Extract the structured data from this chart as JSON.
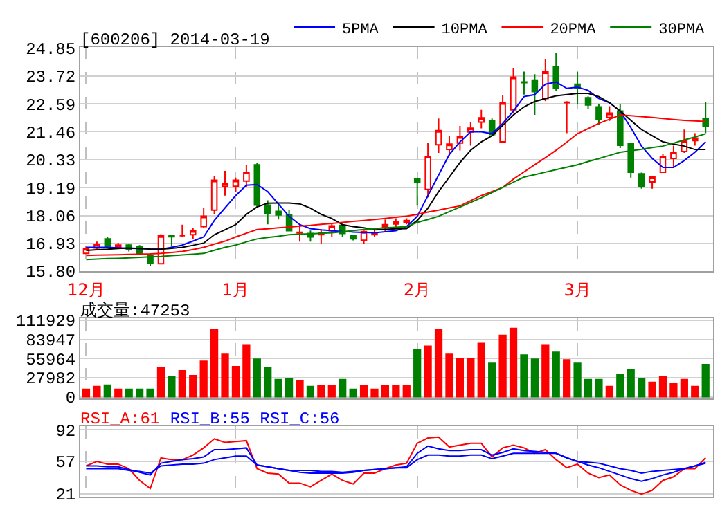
{
  "chart_data": [
    {
      "type": "candlestick",
      "title": "[600206] 2014-03-19",
      "legend": "top right",
      "grid": true,
      "marker": "none",
      "line_style": "solid",
      "categories": [
        "12月",
        null,
        null,
        null,
        null,
        null,
        null,
        null,
        null,
        null,
        null,
        null,
        null,
        null,
        "1月",
        null,
        null,
        null,
        null,
        null,
        null,
        null,
        null,
        null,
        null,
        null,
        null,
        null,
        null,
        null,
        null,
        "2月",
        null,
        null,
        null,
        null,
        null,
        null,
        null,
        null,
        null,
        null,
        null,
        null,
        null,
        null,
        "3月",
        null,
        null,
        null,
        null,
        null,
        null,
        null,
        null,
        null,
        null,
        null,
        null
      ],
      "ylim": [
        15.8,
        24.9
      ],
      "yticks": [
        {
          "value": 15.8,
          "label": "15.80"
        },
        16.93,
        18.06,
        19.19,
        20.33,
        21.46,
        22.59,
        23.72,
        24.85
      ],
      "ohlc": [
        [
          16.52,
          16.8,
          16.5,
          16.72
        ],
        [
          16.74,
          17.0,
          16.7,
          16.89
        ],
        [
          17.11,
          17.2,
          16.78,
          16.81
        ],
        [
          16.78,
          16.95,
          16.7,
          16.86
        ],
        [
          16.86,
          16.92,
          16.6,
          16.69
        ],
        [
          16.78,
          16.86,
          16.5,
          16.52
        ],
        [
          16.44,
          16.5,
          16.0,
          16.14
        ],
        [
          16.1,
          17.3,
          16.08,
          17.24
        ],
        [
          17.23,
          17.28,
          16.8,
          17.2
        ],
        [
          17.24,
          17.69,
          17.2,
          17.24
        ],
        [
          17.28,
          17.55,
          17.1,
          17.44
        ],
        [
          17.61,
          18.37,
          17.55,
          18.03
        ],
        [
          18.28,
          19.65,
          18.1,
          19.49
        ],
        [
          19.25,
          19.87,
          18.87,
          19.37
        ],
        [
          19.25,
          19.6,
          19.0,
          19.49
        ],
        [
          19.46,
          20.1,
          19.2,
          19.82
        ],
        [
          20.12,
          20.2,
          18.4,
          18.48
        ],
        [
          18.48,
          18.68,
          17.7,
          18.15
        ],
        [
          18.23,
          18.5,
          17.9,
          18.08
        ],
        [
          18.08,
          18.3,
          17.44,
          17.44
        ],
        [
          17.35,
          17.7,
          17.0,
          17.38
        ],
        [
          17.33,
          17.45,
          17.0,
          17.19
        ],
        [
          17.28,
          17.5,
          16.9,
          17.36
        ],
        [
          17.44,
          17.75,
          17.2,
          17.64
        ],
        [
          17.66,
          17.72,
          17.2,
          17.33
        ],
        [
          17.24,
          17.28,
          17.05,
          17.11
        ],
        [
          17.06,
          17.45,
          16.9,
          17.41
        ],
        [
          17.28,
          17.5,
          17.2,
          17.36
        ],
        [
          17.58,
          17.9,
          17.4,
          17.69
        ],
        [
          17.72,
          17.95,
          17.6,
          17.82
        ],
        [
          17.78,
          17.95,
          17.7,
          17.86
        ],
        [
          19.54,
          19.55,
          18.46,
          19.4
        ],
        [
          19.12,
          21.0,
          18.8,
          20.46
        ],
        [
          20.93,
          22.0,
          20.6,
          21.51
        ],
        [
          20.74,
          21.3,
          20.5,
          20.96
        ],
        [
          21.0,
          21.7,
          20.7,
          21.26
        ],
        [
          21.45,
          21.85,
          20.9,
          21.61
        ],
        [
          21.85,
          22.35,
          21.6,
          22.03
        ],
        [
          21.92,
          22.0,
          21.35,
          21.35
        ],
        [
          21.05,
          22.95,
          21.05,
          22.64
        ],
        [
          22.35,
          24.03,
          22.2,
          23.68
        ],
        [
          23.48,
          23.9,
          22.97,
          23.45
        ],
        [
          23.56,
          23.8,
          22.15,
          23.09
        ],
        [
          22.81,
          24.4,
          22.7,
          23.89
        ],
        [
          24.1,
          24.66,
          23.1,
          23.22
        ],
        [
          22.64,
          22.7,
          21.4,
          22.66
        ],
        [
          23.39,
          23.9,
          22.6,
          23.22
        ],
        [
          22.84,
          22.9,
          22.4,
          22.55
        ],
        [
          22.47,
          22.6,
          21.75,
          21.95
        ],
        [
          22.04,
          22.5,
          21.9,
          22.22
        ],
        [
          22.3,
          22.6,
          20.8,
          20.91
        ],
        [
          20.99,
          21.0,
          19.6,
          19.82
        ],
        [
          19.75,
          19.8,
          19.15,
          19.24
        ],
        [
          19.42,
          19.65,
          19.15,
          19.62
        ],
        [
          19.82,
          20.55,
          19.8,
          20.46
        ],
        [
          20.38,
          20.9,
          20.0,
          20.63
        ],
        [
          20.66,
          21.55,
          20.6,
          21.08
        ],
        [
          21.1,
          21.4,
          20.9,
          21.21
        ],
        [
          22.0,
          22.65,
          21.4,
          21.7
        ]
      ],
      "series": [
        {
          "name": "5PMA",
          "type": "line",
          "color": "#0000ff",
          "values": [
            16.77,
            16.77,
            16.77,
            16.75,
            16.73,
            16.72,
            16.7,
            16.69,
            16.77,
            16.86,
            17.02,
            17.19,
            17.86,
            18.37,
            18.87,
            19.29,
            19.32,
            19.03,
            18.53,
            18.03,
            17.69,
            17.53,
            17.48,
            17.44,
            17.41,
            17.39,
            17.37,
            17.36,
            17.4,
            17.44,
            17.61,
            18.03,
            18.87,
            19.7,
            20.54,
            21.05,
            21.46,
            21.46,
            21.38,
            21.8,
            22.3,
            22.89,
            22.97,
            23.39,
            23.48,
            23.22,
            23.27,
            23.14,
            22.81,
            22.64,
            22.3,
            21.63,
            20.88,
            20.38,
            20.01,
            20.01,
            20.29,
            20.63,
            21.05
          ]
        },
        {
          "name": "10PMA",
          "type": "line",
          "color": "#000000",
          "values": [
            16.64,
            16.67,
            16.69,
            16.72,
            16.74,
            16.72,
            16.7,
            16.69,
            16.73,
            16.77,
            16.85,
            16.94,
            17.28,
            17.48,
            17.69,
            18.11,
            18.41,
            18.56,
            18.57,
            18.57,
            18.53,
            18.36,
            18.11,
            17.94,
            17.69,
            17.61,
            17.56,
            17.48,
            17.5,
            17.52,
            17.53,
            17.86,
            18.36,
            19.03,
            19.62,
            20.21,
            20.71,
            21.05,
            21.3,
            21.72,
            22.14,
            22.47,
            22.69,
            22.81,
            22.92,
            22.97,
            23.02,
            23.02,
            22.89,
            22.64,
            22.3,
            21.92,
            21.55,
            21.3,
            21.05,
            20.96,
            20.88,
            20.74,
            20.74
          ]
        },
        {
          "name": "20PMA",
          "type": "line",
          "color": "#ff0000",
          "values": [
            16.44,
            16.45,
            16.46,
            16.47,
            16.48,
            16.49,
            16.5,
            16.52,
            16.56,
            16.6,
            16.68,
            16.77,
            16.9,
            17.02,
            17.19,
            17.34,
            17.49,
            17.52,
            17.56,
            17.59,
            17.63,
            17.66,
            17.7,
            17.74,
            17.78,
            17.82,
            17.86,
            17.9,
            17.94,
            17.99,
            18.03,
            18.11,
            18.2,
            18.28,
            18.37,
            18.45,
            18.66,
            18.87,
            19.03,
            19.2,
            19.54,
            19.83,
            20.12,
            20.41,
            20.71,
            21.04,
            21.38,
            21.59,
            21.8,
            21.97,
            22.14,
            22.11,
            22.08,
            22.04,
            22.0,
            21.96,
            21.92,
            21.9,
            21.88
          ]
        },
        {
          "name": "30PMA",
          "type": "line",
          "color": "#008000",
          "values": [
            16.27,
            16.29,
            16.31,
            16.32,
            16.34,
            16.36,
            16.38,
            16.4,
            16.43,
            16.46,
            16.49,
            16.52,
            16.65,
            16.77,
            16.86,
            16.99,
            17.11,
            17.17,
            17.22,
            17.28,
            17.3,
            17.32,
            17.34,
            17.36,
            17.4,
            17.45,
            17.49,
            17.53,
            17.56,
            17.58,
            17.61,
            17.78,
            17.9,
            18.03,
            18.22,
            18.4,
            18.59,
            18.78,
            18.99,
            19.2,
            19.41,
            19.62,
            19.72,
            19.82,
            19.92,
            20.02,
            20.12,
            20.25,
            20.37,
            20.5,
            20.63,
            20.69,
            20.75,
            20.82,
            20.88,
            21.0,
            21.13,
            21.25,
            21.38
          ]
        }
      ]
    },
    {
      "type": "bar",
      "title": "成交量:47253",
      "grid": true,
      "tick_labels": "y",
      "categories": [
        null,
        null,
        null,
        null,
        null,
        null,
        null,
        null,
        null,
        null,
        null,
        null,
        null,
        null,
        null,
        null,
        null,
        null,
        null,
        null,
        null,
        null,
        null,
        null,
        null,
        null,
        null,
        null,
        null,
        null,
        null,
        null,
        null,
        null,
        null,
        null,
        null,
        null,
        null,
        null,
        null,
        null,
        null,
        null,
        null,
        null,
        null,
        null,
        null,
        null,
        null,
        null,
        null,
        null,
        null,
        null,
        null,
        null,
        null
      ],
      "ylim": [
        -2500,
        115000
      ],
      "yticks": [
        0,
        27982,
        55964,
        83947,
        111929
      ],
      "values": [
        11000,
        15000,
        17000,
        11000,
        11000,
        11000,
        11000,
        42000,
        29000,
        38000,
        31000,
        52000,
        98000,
        62000,
        44000,
        76000,
        55000,
        43000,
        25000,
        27000,
        23000,
        15000,
        16000,
        16000,
        25000,
        11000,
        16000,
        11000,
        16000,
        16000,
        16000,
        69000,
        74000,
        98000,
        62000,
        56000,
        56000,
        78000,
        49000,
        90000,
        100000,
        61000,
        55000,
        76000,
        65000,
        54000,
        49000,
        25000,
        25000,
        15000,
        33000,
        39000,
        27000,
        21000,
        29000,
        19000,
        25000,
        15000,
        47253
      ],
      "colors": [
        "#ff0000",
        "#ff0000",
        "#008000",
        "#ff0000",
        "#008000",
        "#008000",
        "#008000",
        "#ff0000",
        "#008000",
        "#ff0000",
        "#ff0000",
        "#ff0000",
        "#ff0000",
        "#ff0000",
        "#ff0000",
        "#ff0000",
        "#008000",
        "#008000",
        "#008000",
        "#008000",
        "#ff0000",
        "#008000",
        "#ff0000",
        "#ff0000",
        "#008000",
        "#008000",
        "#ff0000",
        "#ff0000",
        "#ff0000",
        "#ff0000",
        "#ff0000",
        "#008000",
        "#ff0000",
        "#ff0000",
        "#ff0000",
        "#ff0000",
        "#ff0000",
        "#ff0000",
        "#008000",
        "#ff0000",
        "#ff0000",
        "#008000",
        "#008000",
        "#ff0000",
        "#008000",
        "#ff0000",
        "#008000",
        "#008000",
        "#008000",
        "#ff0000",
        "#008000",
        "#008000",
        "#008000",
        "#ff0000",
        "#ff0000",
        "#ff0000",
        "#ff0000",
        "#ff0000",
        "#008000"
      ]
    },
    {
      "type": "line",
      "grid": true,
      "tick_labels": "y",
      "marker": "none",
      "line_style": "solid",
      "annotations": [
        "RSI_A:61",
        "RSI_B:55",
        "RSI_C:56"
      ],
      "categories": [
        null,
        null,
        null,
        null,
        null,
        null,
        null,
        null,
        null,
        null,
        null,
        null,
        null,
        null,
        null,
        null,
        null,
        null,
        null,
        null,
        null,
        null,
        null,
        null,
        null,
        null,
        null,
        null,
        null,
        null,
        null,
        null,
        null,
        null,
        null,
        null,
        null,
        null,
        null,
        null,
        null,
        null,
        null,
        null,
        null,
        null,
        null,
        null,
        null,
        null,
        null,
        null,
        null,
        null,
        null,
        null,
        null,
        null,
        null
      ],
      "ylim": [
        18,
        96
      ],
      "yticks": [
        21,
        57,
        92
      ],
      "series": [
        {
          "color": "#ff0000",
          "values": [
            52,
            57,
            54,
            54,
            49,
            36,
            27,
            61,
            59,
            59,
            64,
            72,
            82,
            78,
            79,
            80,
            49,
            44,
            43,
            33,
            33,
            29,
            36,
            43,
            36,
            32,
            44,
            44,
            49,
            53,
            55,
            77,
            83,
            84,
            73,
            75,
            77,
            77,
            62,
            72,
            75,
            72,
            66,
            70,
            59,
            50,
            54,
            44,
            39,
            42,
            31,
            25,
            21,
            25,
            36,
            40,
            49,
            49,
            61
          ]
        },
        {
          "color": "#0000ff",
          "values": [
            52,
            52,
            51,
            51,
            48,
            45,
            42,
            55,
            57,
            59,
            60,
            62,
            70,
            70,
            71,
            72,
            53,
            51,
            49,
            47,
            45,
            44,
            44,
            44,
            44,
            45,
            47,
            48,
            49,
            50,
            51,
            66,
            74,
            71,
            69,
            69,
            70,
            70,
            64,
            67,
            71,
            69,
            68,
            67,
            66,
            61,
            57,
            53,
            50,
            46,
            42,
            38,
            35,
            38,
            42,
            45,
            49,
            52,
            55
          ]
        },
        {
          "color": "#0000ff",
          "values": [
            49,
            49,
            49,
            49,
            47,
            46,
            44,
            52,
            53,
            54,
            54,
            55,
            59,
            61,
            63,
            63,
            53,
            51,
            49,
            47,
            47,
            47,
            46,
            46,
            45,
            46,
            47,
            48,
            49,
            50,
            50,
            59,
            64,
            64,
            63,
            63,
            64,
            64,
            60,
            63,
            66,
            66,
            66,
            66,
            66,
            61,
            57,
            56,
            55,
            52,
            49,
            47,
            44,
            46,
            47,
            48,
            49,
            52,
            56
          ]
        }
      ]
    }
  ]
}
